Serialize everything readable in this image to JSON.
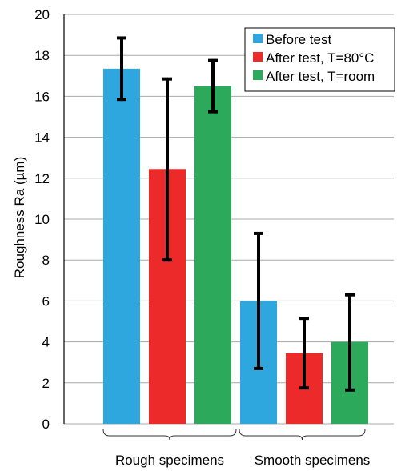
{
  "chart_data": {
    "type": "bar",
    "title": "",
    "xlabel": "",
    "ylabel": "Roughness Ra (µm)",
    "ylim": [
      0,
      20
    ],
    "yticks": [
      0,
      2,
      4,
      6,
      8,
      10,
      12,
      14,
      16,
      18,
      20
    ],
    "grid": true,
    "legend_position": "top-right",
    "categories": [
      "Rough specimens",
      "Smooth specimens"
    ],
    "series": [
      {
        "name": "Before test",
        "color": "#2EA7DF",
        "values": [
          17.35,
          6.0
        ],
        "err_low": [
          15.85,
          2.7
        ],
        "err_high": [
          18.85,
          9.3
        ]
      },
      {
        "name": "After test, T=80°C",
        "color": "#ED2A2A",
        "values": [
          12.45,
          3.45
        ],
        "err_low": [
          8.0,
          1.75
        ],
        "err_high": [
          16.85,
          5.15
        ]
      },
      {
        "name": "After test, T=room",
        "color": "#2CA95A",
        "values": [
          16.5,
          4.0
        ],
        "err_low": [
          15.25,
          1.65
        ],
        "err_high": [
          17.75,
          6.3
        ]
      }
    ]
  }
}
